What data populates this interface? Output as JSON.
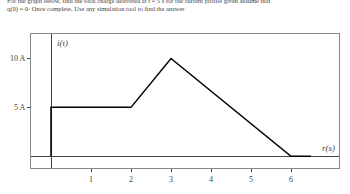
{
  "chart_data": {
    "type": "line",
    "title": "For the graph below, find the total charge delivered at t = 5 s for the current profile given assume that\nq(0) = 0- Once complete, Use any simulation tool to find the answer",
    "xlabel": "r(s)",
    "ylabel": "i(t)",
    "x": [
      0,
      0,
      2,
      3,
      6,
      6.5
    ],
    "values": [
      0,
      5,
      5,
      10,
      0,
      0
    ],
    "color": "#000000",
    "xlim": [
      -0.5,
      7.2
    ],
    "ylim": [
      -1.2,
      12.5
    ],
    "xticks": [
      1,
      2,
      3,
      4,
      5,
      6
    ],
    "yticks": [
      {
        "value": 5,
        "label": "5 A"
      },
      {
        "value": 10,
        "label": "10 A"
      }
    ],
    "grid": false
  }
}
